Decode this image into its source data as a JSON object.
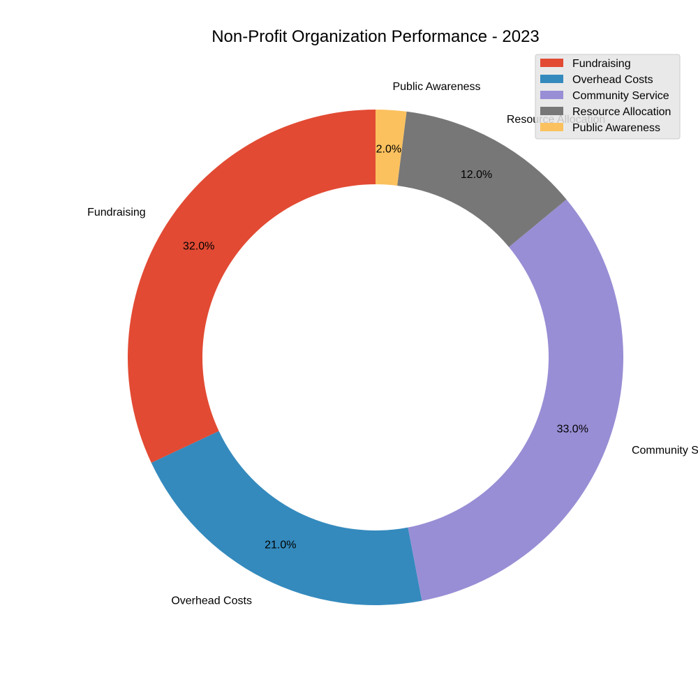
{
  "chart_data": {
    "type": "pie",
    "title": "Non-Profit Organization Performance - 2023",
    "donut": true,
    "start_angle_deg": 90,
    "direction": "counterclockwise",
    "legend_position": "top-right",
    "categories": [
      "Fundraising",
      "Overhead Costs",
      "Community Service",
      "Resource Allocation",
      "Public Awareness"
    ],
    "values": [
      32,
      21,
      33,
      12,
      2
    ],
    "percent_labels": [
      "32.0%",
      "21.0%",
      "33.0%",
      "12.0%",
      "2.0%"
    ],
    "colors": [
      "#E24A33",
      "#348ABD",
      "#988ED5",
      "#777777",
      "#FBC15E"
    ]
  }
}
